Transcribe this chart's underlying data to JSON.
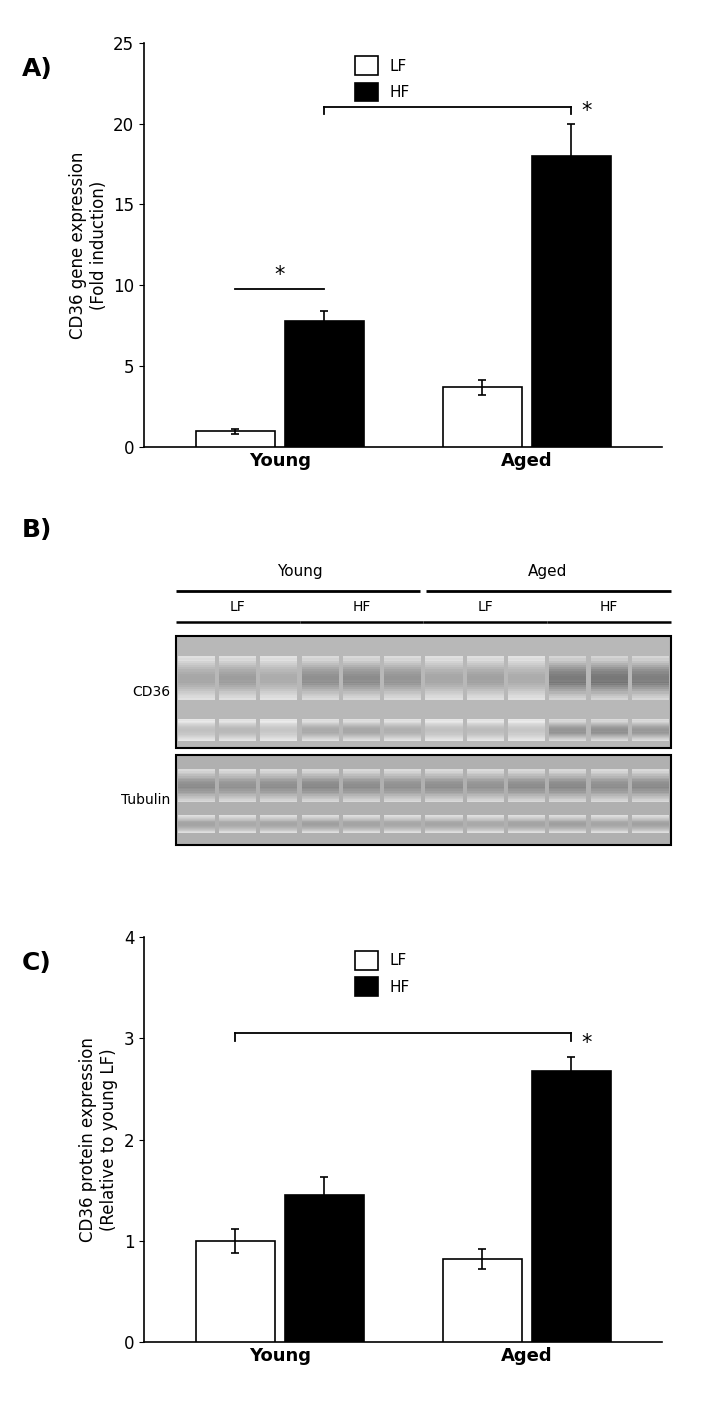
{
  "panel_A": {
    "label": "A)",
    "groups": [
      "Young",
      "Aged"
    ],
    "bar_values": [
      [
        1.0,
        7.8
      ],
      [
        3.7,
        18.0
      ]
    ],
    "bar_errors": [
      [
        0.15,
        0.65
      ],
      [
        0.45,
        2.0
      ]
    ],
    "bar_colors": [
      "white",
      "black"
    ],
    "bar_edgecolor": "black",
    "ylabel": "CD36 gene expression\n(Fold induction)",
    "ylim": [
      0,
      25
    ],
    "yticks": [
      0,
      5,
      10,
      15,
      20,
      25
    ],
    "legend_labels": [
      "LF",
      "HF"
    ],
    "sig_within_young": {
      "y": 9.8,
      "label": "*"
    },
    "sig_between": {
      "y": 21.0,
      "label": "*"
    }
  },
  "panel_B": {
    "label": "B)",
    "cd36_label": "CD36",
    "tubulin_label": "Tubulin",
    "young_label": "Young",
    "aged_label": "Aged",
    "lf_label": "LF",
    "hf_label": "HF",
    "n_lanes": 12,
    "cd36_bg": "#aaaaaa",
    "tub_bg": "#b0b0b0"
  },
  "panel_C": {
    "label": "C)",
    "groups": [
      "Young",
      "Aged"
    ],
    "bar_values": [
      [
        1.0,
        1.45
      ],
      [
        0.82,
        2.68
      ]
    ],
    "bar_errors": [
      [
        0.12,
        0.18
      ],
      [
        0.1,
        0.14
      ]
    ],
    "bar_colors": [
      "white",
      "black"
    ],
    "bar_edgecolor": "black",
    "ylabel": "CD36 protein expression\n(Relative to young LF)",
    "ylim": [
      0,
      4
    ],
    "yticks": [
      0,
      1,
      2,
      3,
      4
    ],
    "legend_labels": [
      "LF",
      "HF"
    ],
    "sig_between": {
      "y": 3.05,
      "label": "*"
    }
  },
  "bg_color": "#ffffff",
  "bar_width": 0.32,
  "label_fontsize": 18,
  "tick_fontsize": 12,
  "ylabel_fontsize": 12,
  "legend_fontsize": 11,
  "axis_label_fontsize": 13
}
